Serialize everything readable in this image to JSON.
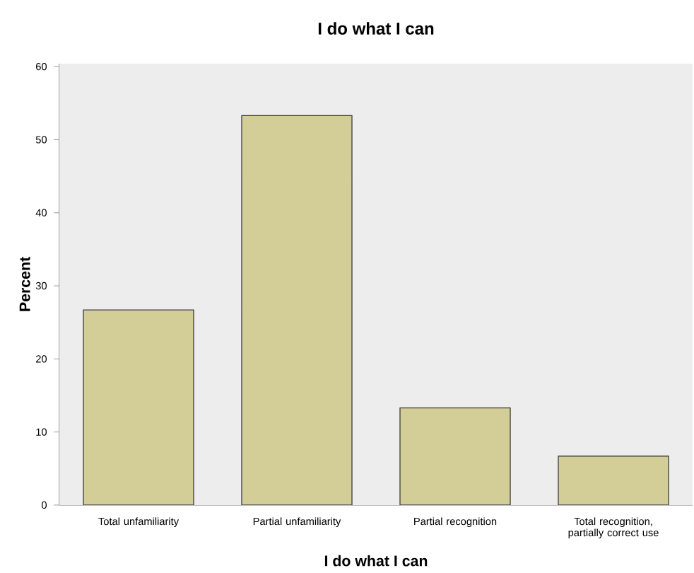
{
  "chart_data": {
    "type": "bar",
    "title": "I do what I can",
    "xlabel": "I do what I can",
    "ylabel": "Percent",
    "categories": [
      "Total unfamiliarity",
      "Partial unfamiliarity",
      "Partial recognition",
      "Total recognition, partially correct use"
    ],
    "values": [
      26.7,
      53.3,
      13.3,
      6.7
    ],
    "color": "#d3ce97",
    "ylim": [
      0,
      60.4
    ],
    "yticks": [
      0,
      10,
      20,
      30,
      40,
      50,
      60
    ],
    "grid": false
  }
}
